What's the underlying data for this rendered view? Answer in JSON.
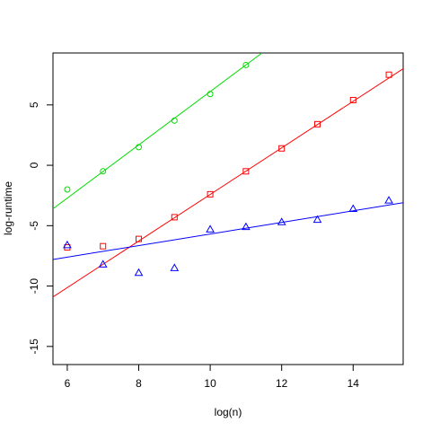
{
  "chart_data": {
    "type": "scatter",
    "title": "",
    "xlabel": "log(n)",
    "ylabel": "log-runtime",
    "xlim": [
      5.6,
      15.4
    ],
    "ylim": [
      -16.5,
      9.3
    ],
    "xticks": [
      6,
      8,
      10,
      12,
      14
    ],
    "yticks": [
      -15,
      -10,
      -5,
      0,
      5
    ],
    "xtick_labels": [
      "6",
      "8",
      "10",
      "12",
      "14"
    ],
    "ytick_labels": [
      "-15",
      "-10",
      "-5",
      "0",
      "5"
    ],
    "grid": false,
    "series": [
      {
        "color": "#00dd00",
        "marker": "circle",
        "points": [
          [
            6,
            -2.0
          ],
          [
            7,
            -0.5
          ],
          [
            8,
            1.5
          ],
          [
            9,
            3.7
          ],
          [
            10,
            5.9
          ],
          [
            11,
            8.3
          ]
        ],
        "fit_line": [
          [
            5.6,
            -3.6
          ],
          [
            11.45,
            9.3
          ]
        ]
      },
      {
        "color": "#ff0000",
        "marker": "square",
        "points": [
          [
            6,
            -6.8
          ],
          [
            7,
            -6.7
          ],
          [
            8,
            -6.1
          ],
          [
            9,
            -4.3
          ],
          [
            10,
            -2.4
          ],
          [
            11,
            -0.5
          ],
          [
            12,
            1.4
          ],
          [
            13,
            3.4
          ],
          [
            14,
            5.4
          ],
          [
            15,
            7.5
          ]
        ],
        "fit_line": [
          [
            5.6,
            -10.9
          ],
          [
            15.4,
            8.0
          ]
        ]
      },
      {
        "color": "#0000ff",
        "marker": "triangle",
        "points": [
          [
            6,
            -6.6
          ],
          [
            7,
            -8.2
          ],
          [
            8,
            -8.9
          ],
          [
            9,
            -8.5
          ],
          [
            10,
            -5.3
          ],
          [
            11,
            -5.1
          ],
          [
            12,
            -4.7
          ],
          [
            13,
            -4.5
          ],
          [
            14,
            -3.6
          ],
          [
            15,
            -2.9
          ]
        ],
        "fit_line": [
          [
            5.6,
            -7.8
          ],
          [
            15.4,
            -3.1
          ]
        ]
      }
    ]
  }
}
